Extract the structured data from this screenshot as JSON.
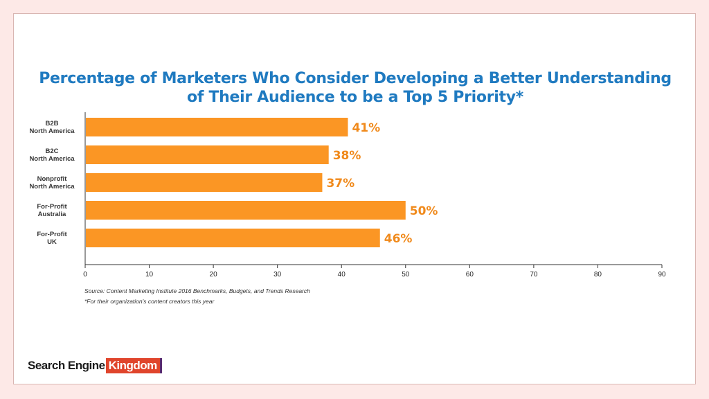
{
  "chart_data": {
    "type": "bar",
    "orientation": "horizontal",
    "title_lines": [
      "Percentage of Marketers Who Consider Developing a Better Understanding",
      "of Their Audience to be a Top 5 Priority*"
    ],
    "categories": [
      [
        "B2B",
        "North America"
      ],
      [
        "B2C",
        "North America"
      ],
      [
        "Nonprofit",
        "North America"
      ],
      [
        "For-Profit",
        "Australia"
      ],
      [
        "For-Profit",
        "UK"
      ]
    ],
    "values": [
      41,
      38,
      37,
      50,
      46
    ],
    "data_labels": [
      "41%",
      "38%",
      "37%",
      "50%",
      "46%"
    ],
    "xlim": [
      0,
      90
    ],
    "xticks": [
      0,
      10,
      20,
      30,
      40,
      50,
      60,
      70,
      80,
      90
    ],
    "xlabel": "",
    "ylabel": "",
    "grid": false,
    "bar_color": "#fb9624",
    "label_color": "#f08a1c",
    "axis_color": "#333333"
  },
  "footnotes": {
    "source": "Source: Content Marketing Institute 2016 Benchmarks, Budgets, and Trends Research",
    "note": "*For their organization's content creators this year"
  },
  "logo": {
    "part1": "Search Engine",
    "part2": "Kingdom"
  },
  "colors": {
    "page_bg": "#fde9e7",
    "card_bg": "#ffffff",
    "title": "#1f7ac0",
    "logo_accent": "#e0452c"
  }
}
